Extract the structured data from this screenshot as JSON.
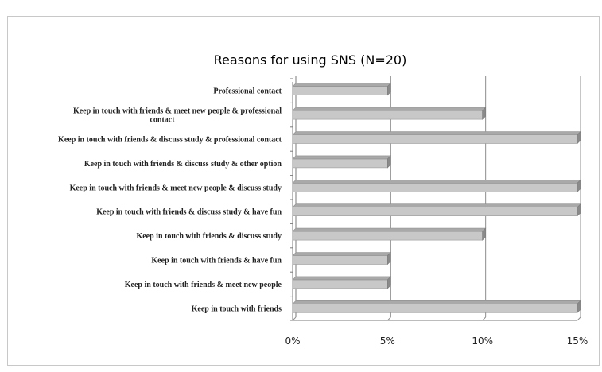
{
  "chart_data": {
    "type": "bar",
    "orientation": "horizontal",
    "style": "3d",
    "title": "Reasons for using SNS (N=20)",
    "categories": [
      "Professional contact",
      "Keep in touch with friends & meet new people & professional contact",
      "Keep in touch with friends & discuss study & professional contact",
      "Keep in touch with friends & discuss study & other option",
      "Keep in touch with friends & meet new people & discuss study",
      "Keep in touch with friends & discuss study & have fun",
      "Keep in touch with friends & discuss study",
      "Keep in touch with friends & have fun",
      "Keep in touch with friends & meet new people",
      "Keep in touch with friends"
    ],
    "values": [
      5,
      10,
      15,
      5,
      15,
      15,
      10,
      5,
      5,
      15
    ],
    "xticks": [
      "0%",
      "5%",
      "10%",
      "15%"
    ],
    "xlim": [
      0,
      15
    ],
    "grid": true,
    "legend": "none",
    "colors": {
      "bar_front": "#c8c8c8",
      "bar_top": "#a9a9a9",
      "bar_side": "#8a8a8a",
      "grid": "#8c8c8c",
      "axis": "#7a7a7a",
      "text": "#222222"
    }
  }
}
